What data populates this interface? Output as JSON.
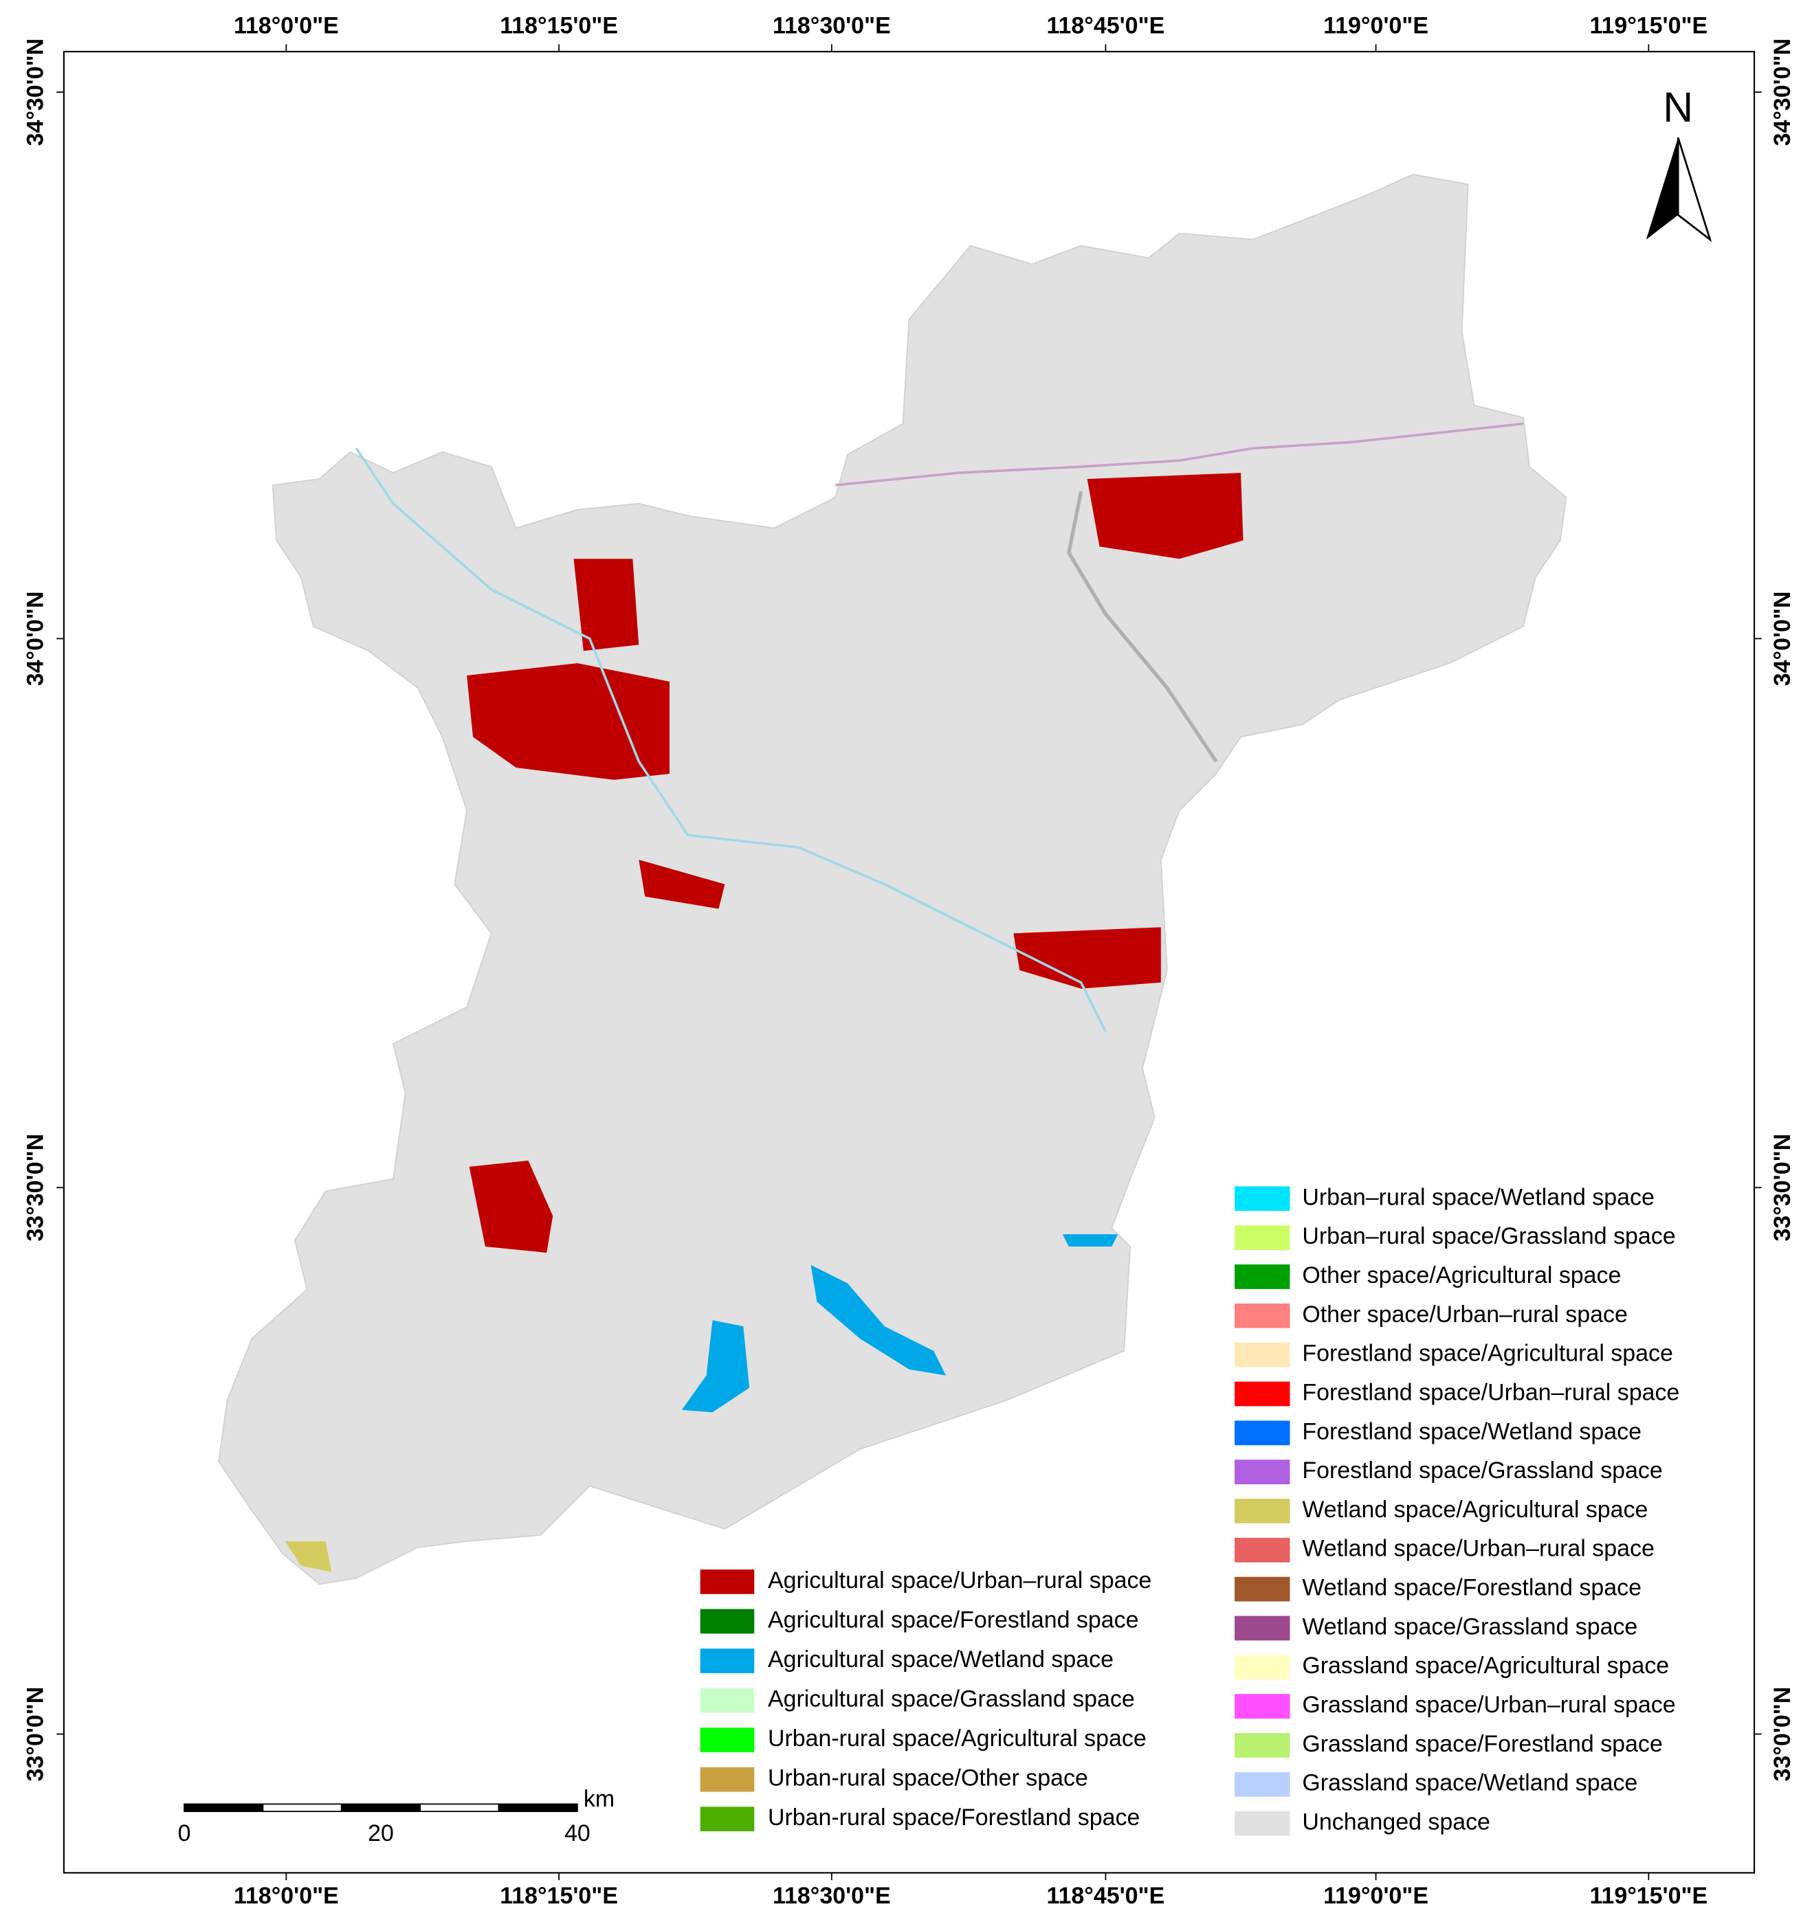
{
  "map": {
    "lon_labels": [
      "118°0'0\"E",
      "118°15'0\"E",
      "118°30'0\"E",
      "118°45'0\"E",
      "119°0'0\"E",
      "119°15'0\"E"
    ],
    "lat_labels": [
      "34°30'0\"N",
      "34°0'0\"N",
      "33°30'0\"N",
      "33°0'0\"N"
    ],
    "north": "N",
    "scale_bar": {
      "unit": "km",
      "labels": [
        "0",
        "20",
        "40"
      ]
    },
    "legend_left": [
      {
        "label": "Agricultural space/Urban–rural space",
        "color": "#c00000"
      },
      {
        "label": "Agricultural space/Forestland space",
        "color": "#008000"
      },
      {
        "label": "Agricultural space/Wetland space",
        "color": "#00a8e8"
      },
      {
        "label": "Agricultural space/Grassland space",
        "color": "#c8ffc8"
      },
      {
        "label": "Urban-rural space/Agricultural space",
        "color": "#00ff00"
      },
      {
        "label": "Urban-rural space/Other space",
        "color": "#c8a040"
      },
      {
        "label": "Urban-rural space/Forestland space",
        "color": "#4caf00"
      }
    ],
    "legend_right": [
      {
        "label": "Urban–rural space/Wetland space",
        "color": "#00e5ff"
      },
      {
        "label": "Urban–rural space/Grassland space",
        "color": "#ccff66"
      },
      {
        "label": "Other space/Agricultural space",
        "color": "#00a000"
      },
      {
        "label": "Other space/Urban–rural space",
        "color": "#ff8080"
      },
      {
        "label": "Forestland space/Agricultural space",
        "color": "#ffe8b8"
      },
      {
        "label": "Forestland space/Urban–rural space",
        "color": "#ff0000"
      },
      {
        "label": "Forestland space/Wetland space",
        "color": "#0070ff"
      },
      {
        "label": "Forestland space/Grassland space",
        "color": "#b060e0"
      },
      {
        "label": "Wetland space/Agricultural space",
        "color": "#d4cc60"
      },
      {
        "label": "Wetland space/Urban–rural space",
        "color": "#e86060"
      },
      {
        "label": "Wetland space/Forestland space",
        "color": "#a0582a"
      },
      {
        "label": "Wetland space/Grassland space",
        "color": "#9c4a8c"
      },
      {
        "label": "Grassland space/Agricultural space",
        "color": "#ffffc0"
      },
      {
        "label": "Grassland space/Urban–rural space",
        "color": "#ff50ff"
      },
      {
        "label": "Grassland space/Forestland space",
        "color": "#b8f070"
      },
      {
        "label": "Grassland space/Wetland space",
        "color": "#b8d0ff"
      },
      {
        "label": "Unchanged space",
        "color": "#e1e1e1"
      }
    ]
  }
}
